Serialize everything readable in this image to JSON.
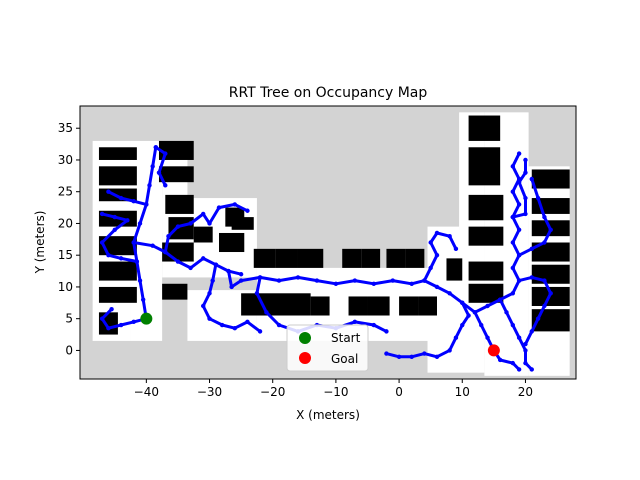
{
  "chart_data": {
    "type": "scatter",
    "title": "RRT Tree on Occupancy Map",
    "xlabel": "X (meters)",
    "ylabel": "Y (meters)",
    "xlim": [
      -50.5,
      28
    ],
    "ylim": [
      -4.5,
      38.5
    ],
    "xticks": [
      -40,
      -30,
      -20,
      -10,
      0,
      10,
      20
    ],
    "yticks": [
      0,
      5,
      10,
      15,
      20,
      25,
      30,
      35
    ],
    "grid": false,
    "legend_position": "lower center",
    "colors": {
      "unknown": "#d3d3d3",
      "free": "#ffffff",
      "obstacle": "#000000",
      "tree": "#0000ff",
      "start": "#008000",
      "goal": "#ff0000"
    },
    "start": {
      "label": "Start",
      "x": -40,
      "y": 5
    },
    "goal": {
      "label": "Goal",
      "x": 15,
      "y": 0
    },
    "free_regions": [
      [
        -48.5,
        1.5,
        -42.5,
        33
      ],
      [
        -42.5,
        1.5,
        -37.5,
        33
      ],
      [
        -37.5,
        18.5,
        -33.5,
        33
      ],
      [
        -37.5,
        11.5,
        -22.5,
        24
      ],
      [
        -33.5,
        1.5,
        -22.5,
        9.5
      ],
      [
        -22.5,
        1.5,
        4.5,
        13
      ],
      [
        4.5,
        1.5,
        9.5,
        19.5
      ],
      [
        4.5,
        -3.5,
        13.5,
        19
      ],
      [
        9.5,
        1.5,
        13.5,
        37.5
      ],
      [
        13.5,
        -4,
        20.5,
        37.5
      ],
      [
        20.5,
        -4,
        27,
        29
      ]
    ],
    "obstacles": [
      [
        -47.5,
        30,
        -41.5,
        32
      ],
      [
        -47.5,
        26,
        -41.5,
        29
      ],
      [
        -47.5,
        23.5,
        -41.5,
        25.5
      ],
      [
        -47.5,
        19.5,
        -41.5,
        22
      ],
      [
        -47.5,
        15,
        -41.5,
        18
      ],
      [
        -47.5,
        11,
        -41.5,
        14
      ],
      [
        -47.5,
        7.5,
        -41.5,
        10
      ],
      [
        -47.5,
        2.5,
        -44.5,
        6
      ],
      [
        -38,
        30,
        -32.5,
        33
      ],
      [
        -38,
        26.5,
        -32.5,
        29
      ],
      [
        -37,
        21.5,
        -32.5,
        24.5
      ],
      [
        -36.5,
        17.5,
        -32.5,
        21
      ],
      [
        -37.5,
        14,
        -32.5,
        17
      ],
      [
        -37.5,
        8,
        -33.5,
        10.5
      ],
      [
        -32.5,
        17,
        -29.5,
        19.5
      ],
      [
        -27.5,
        19.5,
        -24.5,
        22.5
      ],
      [
        -28.5,
        15.5,
        -24.5,
        18.5
      ],
      [
        -23,
        13,
        -19.5,
        16
      ],
      [
        -19.5,
        13,
        -16,
        16
      ],
      [
        -16,
        13,
        -12,
        16
      ],
      [
        -9,
        13,
        -6,
        16
      ],
      [
        -6,
        13,
        -3,
        16
      ],
      [
        -2,
        13,
        1,
        16
      ],
      [
        1,
        13,
        4,
        16
      ],
      [
        -25,
        5.5,
        -14,
        9
      ],
      [
        -14,
        5.5,
        -11,
        8.5
      ],
      [
        -8,
        5.5,
        -5,
        8.5
      ],
      [
        -5,
        5.5,
        -1.5,
        8.5
      ],
      [
        0,
        5.5,
        3,
        8.5
      ],
      [
        3,
        5.5,
        6,
        8.5
      ],
      [
        11,
        33,
        16,
        37
      ],
      [
        11,
        26,
        16,
        32
      ],
      [
        11,
        20.5,
        16.5,
        24.5
      ],
      [
        11,
        16.5,
        16.5,
        19.5
      ],
      [
        11,
        11,
        16.5,
        14
      ],
      [
        11,
        7.5,
        16.5,
        10.5
      ],
      [
        21,
        25.5,
        27,
        28.5
      ],
      [
        21,
        21.5,
        27,
        24
      ],
      [
        21,
        18,
        27,
        20.5
      ],
      [
        21,
        14,
        27,
        17
      ],
      [
        21,
        10.5,
        27,
        13.5
      ],
      [
        21,
        7,
        27,
        10
      ],
      [
        21,
        3,
        27,
        6.5
      ],
      [
        7.5,
        11,
        10,
        14.5
      ],
      [
        -26.5,
        19,
        -23,
        21
      ]
    ],
    "tree_paths": [
      [
        [
          -40,
          5
        ],
        [
          -40.5,
          8
        ],
        [
          -41,
          11
        ],
        [
          -41.5,
          14
        ],
        [
          -42,
          17
        ],
        [
          -41,
          20
        ],
        [
          -40,
          23
        ],
        [
          -39.5,
          26
        ],
        [
          -39,
          29
        ],
        [
          -38.5,
          32
        ]
      ],
      [
        [
          -40,
          5
        ],
        [
          -42,
          4.5
        ],
        [
          -44,
          4
        ],
        [
          -46,
          3.5
        ],
        [
          -47,
          5
        ],
        [
          -45.5,
          6.5
        ]
      ],
      [
        [
          -41.5,
          14
        ],
        [
          -44,
          14.5
        ],
        [
          -46,
          15
        ],
        [
          -47,
          17
        ],
        [
          -45,
          19
        ],
        [
          -43,
          20.5
        ],
        [
          -45,
          21
        ],
        [
          -47,
          21.5
        ]
      ],
      [
        [
          -42,
          17
        ],
        [
          -39,
          16.5
        ],
        [
          -37,
          15.5
        ],
        [
          -35,
          14
        ],
        [
          -33,
          13
        ],
        [
          -31,
          14.5
        ],
        [
          -29,
          13.5
        ],
        [
          -27,
          12.5
        ],
        [
          -25,
          12
        ]
      ],
      [
        [
          -40,
          23
        ],
        [
          -42,
          23.5
        ],
        [
          -44,
          24
        ],
        [
          -46,
          25
        ]
      ],
      [
        [
          -37,
          15.5
        ],
        [
          -36.5,
          18
        ],
        [
          -35,
          19.5
        ],
        [
          -33,
          20
        ],
        [
          -31,
          21.5
        ],
        [
          -30,
          20
        ],
        [
          -28.5,
          22.5
        ],
        [
          -26,
          23
        ],
        [
          -24,
          22
        ]
      ],
      [
        [
          -29,
          13.5
        ],
        [
          -29.5,
          11
        ],
        [
          -30,
          9
        ],
        [
          -31,
          7
        ],
        [
          -30,
          5
        ],
        [
          -28,
          4
        ],
        [
          -26,
          3.5
        ],
        [
          -24,
          4.5
        ],
        [
          -22,
          3
        ]
      ],
      [
        [
          -27,
          12.5
        ],
        [
          -26.5,
          10
        ],
        [
          -25,
          11
        ],
        [
          -22,
          11.5
        ],
        [
          -19,
          11
        ],
        [
          -16,
          11.5
        ],
        [
          -13,
          11
        ],
        [
          -10,
          10.5
        ],
        [
          -7,
          11
        ],
        [
          -4,
          10.5
        ],
        [
          -1,
          11
        ],
        [
          2,
          10.5
        ],
        [
          4,
          11
        ]
      ],
      [
        [
          -22,
          11.5
        ],
        [
          -22.5,
          9
        ],
        [
          -21,
          6
        ],
        [
          -19,
          4
        ],
        [
          -16,
          3
        ],
        [
          -13,
          4
        ],
        [
          -10,
          3.5
        ],
        [
          -7,
          4.5
        ],
        [
          -4,
          4
        ],
        [
          -2,
          3
        ]
      ],
      [
        [
          4,
          11
        ],
        [
          5,
          13
        ],
        [
          6,
          15
        ],
        [
          5,
          17
        ],
        [
          6,
          18.5
        ],
        [
          8,
          18
        ],
        [
          9,
          16
        ]
      ],
      [
        [
          4,
          11
        ],
        [
          6,
          10
        ],
        [
          8,
          9
        ],
        [
          10,
          7.5
        ],
        [
          11,
          5.5
        ],
        [
          10,
          4
        ],
        [
          9,
          2
        ],
        [
          8,
          0
        ],
        [
          6,
          -1
        ],
        [
          4,
          -0.5
        ],
        [
          2,
          -1
        ],
        [
          0,
          -1
        ],
        [
          -2,
          -0.5
        ]
      ],
      [
        [
          10,
          7.5
        ],
        [
          12,
          6
        ],
        [
          13,
          4
        ],
        [
          14,
          2
        ],
        [
          15,
          0
        ],
        [
          16,
          -1.5
        ],
        [
          18,
          -2
        ],
        [
          19,
          -3
        ]
      ],
      [
        [
          12,
          6
        ],
        [
          14,
          7
        ],
        [
          16,
          8
        ],
        [
          18,
          9
        ],
        [
          19,
          11
        ],
        [
          18,
          13
        ],
        [
          19,
          15
        ],
        [
          18,
          17
        ],
        [
          19,
          19
        ],
        [
          18,
          21
        ],
        [
          19,
          23
        ],
        [
          18,
          25
        ],
        [
          19,
          27
        ],
        [
          18,
          29
        ],
        [
          19,
          31
        ]
      ],
      [
        [
          16,
          8
        ],
        [
          17,
          6
        ],
        [
          18,
          4
        ],
        [
          19,
          2
        ],
        [
          20,
          0
        ],
        [
          20,
          -2
        ],
        [
          21,
          -3
        ]
      ],
      [
        [
          19,
          15
        ],
        [
          21,
          16
        ],
        [
          23,
          17
        ],
        [
          24,
          19
        ],
        [
          23,
          21
        ],
        [
          22,
          24
        ],
        [
          21,
          27
        ]
      ],
      [
        [
          19,
          11
        ],
        [
          21,
          11.5
        ],
        [
          23,
          11
        ],
        [
          24,
          9
        ],
        [
          23,
          7
        ],
        [
          22,
          5
        ],
        [
          21,
          3
        ],
        [
          20,
          1
        ]
      ],
      [
        [
          18,
          21
        ],
        [
          20,
          21.5
        ],
        [
          20,
          24
        ],
        [
          19,
          26.5
        ],
        [
          20,
          28
        ],
        [
          20,
          30
        ]
      ],
      [
        [
          -38.5,
          32
        ],
        [
          -37,
          31
        ],
        [
          -38,
          28
        ],
        [
          -37,
          26
        ]
      ]
    ]
  }
}
